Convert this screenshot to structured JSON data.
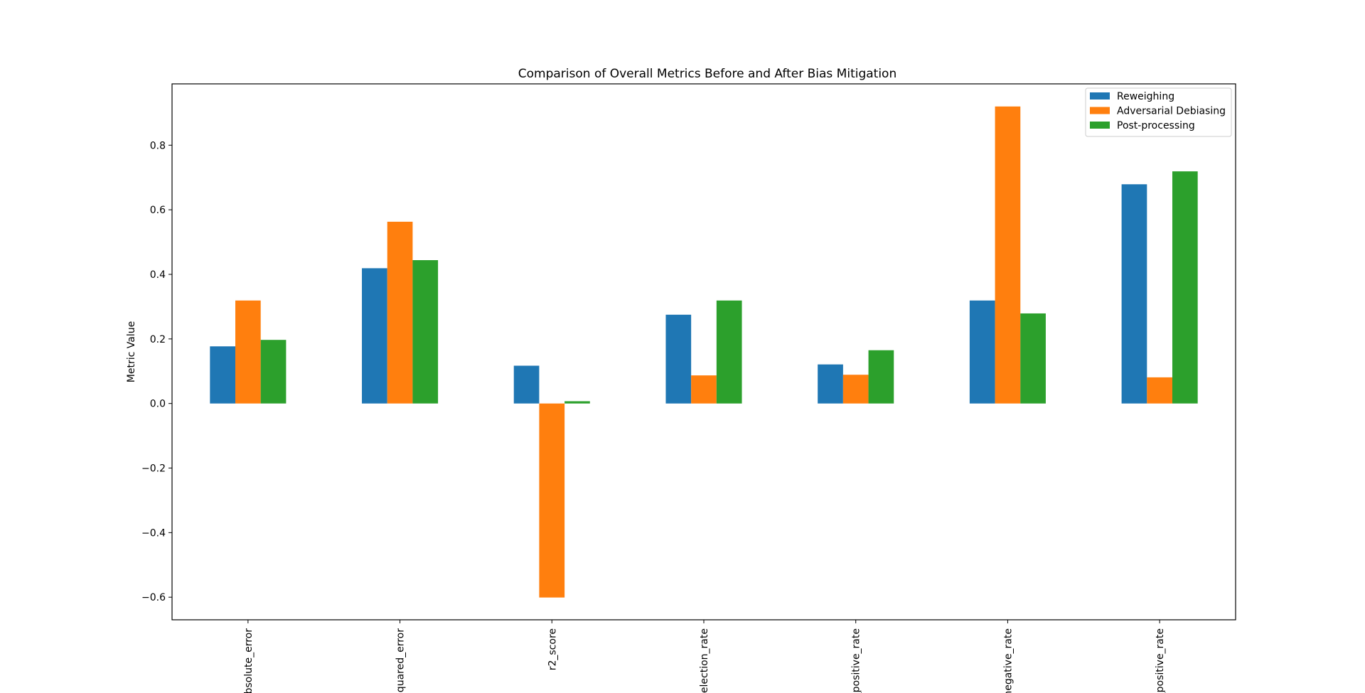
{
  "chart_data": {
    "type": "bar",
    "title": "Comparison of Overall Metrics Before and After Bias Mitigation",
    "xlabel": "",
    "ylabel": "Metric Value",
    "categories": [
      "absolute_error",
      "squared_error",
      "r2_score",
      "selection_rate",
      "_positive_rate",
      "negative_rate",
      "_positive_rate"
    ],
    "series": [
      {
        "name": "Reweighing",
        "color": "#1f77b4",
        "values": [
          0.177,
          0.419,
          0.117,
          0.275,
          0.121,
          0.319,
          0.679
        ]
      },
      {
        "name": "Adversarial Debiasing",
        "color": "#ff7f0e",
        "values": [
          0.319,
          0.563,
          -0.601,
          0.087,
          0.089,
          0.92,
          0.081
        ]
      },
      {
        "name": "Post-processing",
        "color": "#2ca02c",
        "values": [
          0.197,
          0.444,
          0.007,
          0.319,
          0.165,
          0.279,
          0.719
        ]
      }
    ],
    "ylim": [
      -0.67,
      0.99
    ],
    "yticks": [
      -0.6,
      -0.4,
      -0.2,
      0.0,
      0.2,
      0.4,
      0.6,
      0.8
    ],
    "ytick_labels": [
      "−0.6",
      "−0.4",
      "−0.2",
      "0.0",
      "0.2",
      "0.4",
      "0.6",
      "0.8"
    ],
    "grid": false,
    "legend_position": "top-right"
  }
}
